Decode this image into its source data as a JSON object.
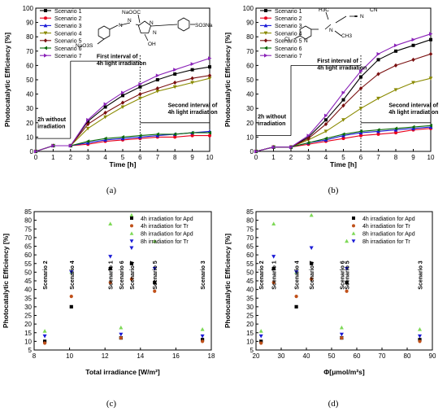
{
  "panel_labels": [
    "(a)",
    "(b)",
    "(c)",
    "(d)"
  ],
  "chart_data": [
    {
      "type": "line",
      "panel": "(a)",
      "xlabel": "Time [h]",
      "ylabel": "Photocatalytic Efficiency [%]",
      "xlim": [
        0,
        10
      ],
      "ylim": [
        0,
        100
      ],
      "xticks": [
        0,
        1,
        2,
        3,
        4,
        5,
        6,
        7,
        8,
        9,
        10
      ],
      "yticks": [
        0,
        10,
        20,
        30,
        40,
        50,
        60,
        70,
        80,
        90,
        100
      ],
      "x": [
        0,
        1,
        2,
        3,
        4,
        5,
        6,
        7,
        8,
        9,
        10
      ],
      "legend_position": "top-left",
      "series": [
        {
          "name": "Scenario 1",
          "color": "#000000",
          "marker": "square",
          "values": [
            0,
            4,
            4,
            21,
            31,
            39,
            45,
            50,
            54,
            57,
            59
          ]
        },
        {
          "name": "Scenario 2",
          "color": "#e8001c",
          "marker": "circle",
          "values": [
            0,
            4,
            4,
            5,
            7,
            8,
            9,
            10,
            10,
            11,
            11
          ]
        },
        {
          "name": "Scenario 3",
          "color": "#1a1ad6",
          "marker": "triangle-up",
          "values": [
            0,
            4,
            4,
            6,
            8,
            9,
            10,
            11,
            12,
            13,
            14
          ]
        },
        {
          "name": "Scenario 4",
          "color": "#8a8a00",
          "marker": "triangle-down",
          "values": [
            0,
            4,
            4,
            16,
            24,
            31,
            37,
            42,
            45,
            48,
            51
          ]
        },
        {
          "name": "Scenario 5",
          "color": "#7a1010",
          "marker": "diamond",
          "values": [
            0,
            4,
            4,
            19,
            27,
            34,
            40,
            44,
            48,
            51,
            53
          ]
        },
        {
          "name": "Scenario 6",
          "color": "#0a6a0a",
          "marker": "triangle-left",
          "values": [
            0,
            4,
            4,
            7,
            9,
            10,
            11,
            12,
            12,
            13,
            13
          ]
        },
        {
          "name": "Scenario 7",
          "color": "#8a22b8",
          "marker": "triangle-right",
          "values": [
            0,
            4,
            4,
            22,
            33,
            41,
            47,
            53,
            57,
            61,
            65
          ]
        }
      ],
      "annotations": [
        {
          "text": [
            "2h without",
            "irradiation"
          ],
          "x": 0.1,
          "y": 21
        },
        {
          "text": [
            "First interval of",
            "4h light irradiation"
          ],
          "x": 3.5,
          "y": 65
        },
        {
          "text": [
            "Second interval of",
            "4h light irradiation"
          ],
          "x": 7.6,
          "y": 31
        }
      ],
      "molecule": "chromophore azo dye with NaOOC, SO3Na and OH groups"
    },
    {
      "type": "line",
      "panel": "(b)",
      "xlabel": "Time [h]",
      "ylabel": "Photocatalytic Efficiency [%]",
      "xlim": [
        0,
        10
      ],
      "ylim": [
        0,
        100
      ],
      "xticks": [
        0,
        1,
        2,
        3,
        4,
        5,
        6,
        7,
        8,
        9,
        10
      ],
      "yticks": [
        0,
        10,
        20,
        30,
        40,
        50,
        60,
        70,
        80,
        90,
        100
      ],
      "x": [
        0,
        1,
        2,
        3,
        4,
        5,
        6,
        7,
        8,
        9,
        10
      ],
      "legend_position": "top-left",
      "series": [
        {
          "name": "Scenario 1",
          "color": "#000000",
          "marker": "square",
          "values": [
            0,
            3,
            3,
            10,
            22,
            36,
            52,
            64,
            70,
            74,
            78
          ]
        },
        {
          "name": "Scenario 2",
          "color": "#e8001c",
          "marker": "circle",
          "values": [
            0,
            3,
            3,
            5,
            7,
            9,
            11,
            12,
            13,
            15,
            16
          ]
        },
        {
          "name": "Scenario 3",
          "color": "#1a1ad6",
          "marker": "triangle-up",
          "values": [
            0,
            3,
            3,
            6,
            8,
            11,
            13,
            14,
            15,
            16,
            17
          ]
        },
        {
          "name": "Scenario 4",
          "color": "#8a8a00",
          "marker": "triangle-down",
          "values": [
            0,
            3,
            3,
            8,
            14,
            22,
            30,
            37,
            43,
            48,
            51
          ]
        },
        {
          "name": "Scenario 5",
          "color": "#7a1010",
          "marker": "diamond",
          "values": [
            0,
            3,
            3,
            9,
            19,
            32,
            44,
            54,
            60,
            64,
            68
          ]
        },
        {
          "name": "Scenario 6",
          "color": "#0a6a0a",
          "marker": "triangle-left",
          "values": [
            0,
            3,
            3,
            6,
            9,
            12,
            14,
            15,
            16,
            17,
            18
          ]
        },
        {
          "name": "Scenario 7",
          "color": "#8a22b8",
          "marker": "triangle-right",
          "values": [
            0,
            3,
            3,
            11,
            25,
            41,
            56,
            68,
            74,
            78,
            82
          ]
        }
      ],
      "annotations": [
        {
          "text": [
            "2h without",
            "irradiation"
          ],
          "x": 0.1,
          "y": 23
        },
        {
          "text": [
            "First interval of",
            "4h light irradiation"
          ],
          "x": 3.5,
          "y": 62
        },
        {
          "text": [
            "Second interval of",
            "4h light irradiation"
          ],
          "x": 7.6,
          "y": 31
        }
      ],
      "molecule": "acetamiprid structure with Cl-pyridine, CH3 and CN groups"
    },
    {
      "type": "scatter",
      "panel": "(c)",
      "xlabel": "Total irradiance [W/m²]",
      "ylabel": "Photocatalytic Efficiency [%]",
      "xlim": [
        8,
        18
      ],
      "ylim": [
        5,
        85
      ],
      "xticks": [
        8,
        10,
        12,
        14,
        16,
        18
      ],
      "yticks": [
        5,
        10,
        15,
        20,
        25,
        30,
        35,
        40,
        45,
        50,
        55,
        60,
        65,
        70,
        75,
        80,
        85
      ],
      "legend_position": "top-right",
      "series": [
        {
          "name": "4h irradiation for Apd",
          "color": "#000000",
          "marker": "square",
          "points": [
            [
              8.6,
              10
            ],
            [
              10.1,
              30
            ],
            [
              12.3,
              52
            ],
            [
              12.9,
              12
            ],
            [
              13.5,
              55
            ],
            [
              14.8,
              44
            ],
            [
              17.5,
              11
            ]
          ]
        },
        {
          "name": "4h irradiation for Tr",
          "color": "#c0501a",
          "marker": "circle",
          "points": [
            [
              8.6,
              9
            ],
            [
              10.1,
              36
            ],
            [
              12.3,
              44
            ],
            [
              12.9,
              12
            ],
            [
              13.5,
              46
            ],
            [
              14.8,
              39
            ],
            [
              17.5,
              10
            ]
          ]
        },
        {
          "name": "8h irradiation for Apd",
          "color": "#7ed957",
          "marker": "triangle-up",
          "points": [
            [
              8.6,
              16
            ],
            [
              10.1,
              50
            ],
            [
              12.3,
              78
            ],
            [
              12.9,
              18
            ],
            [
              13.5,
              83
            ],
            [
              14.8,
              68
            ],
            [
              17.5,
              17
            ]
          ]
        },
        {
          "name": "8h irradiation for Tr",
          "color": "#1a1ad6",
          "marker": "triangle-down",
          "points": [
            [
              8.6,
              13
            ],
            [
              10.1,
              50
            ],
            [
              12.3,
              59
            ],
            [
              12.9,
              14
            ],
            [
              13.5,
              64
            ],
            [
              14.8,
              52
            ],
            [
              17.5,
              13
            ]
          ]
        }
      ],
      "annotations": [
        {
          "text": "Scenario 2",
          "x": 8.6
        },
        {
          "text": "Scenario 4",
          "x": 10.1
        },
        {
          "text": "Scenario 1",
          "x": 12.3
        },
        {
          "text": "Scenario 6",
          "x": 12.9
        },
        {
          "text": "Scenario 7",
          "x": 13.5
        },
        {
          "text": "Scenario 5",
          "x": 14.8
        },
        {
          "text": "Scenario 3",
          "x": 17.5
        }
      ]
    },
    {
      "type": "scatter",
      "panel": "(d)",
      "xlabel": "Φ[μmol/m²s]",
      "ylabel": "Photocatalytic Efficiency [%]",
      "xlim": [
        20,
        90
      ],
      "ylim": [
        5,
        85
      ],
      "xticks": [
        20,
        30,
        40,
        50,
        60,
        70,
        80,
        90
      ],
      "yticks": [
        5,
        10,
        15,
        20,
        25,
        30,
        35,
        40,
        45,
        50,
        55,
        60,
        65,
        70,
        75,
        80,
        85
      ],
      "legend_position": "top-right",
      "series": [
        {
          "name": "4h irradiation for Apd",
          "color": "#000000",
          "marker": "square",
          "points": [
            [
              22,
              10
            ],
            [
              27,
              52
            ],
            [
              36,
              30
            ],
            [
              42,
              55
            ],
            [
              54,
              12
            ],
            [
              56,
              44
            ],
            [
              85,
              11
            ]
          ]
        },
        {
          "name": "4h irradiation for Tr",
          "color": "#c0501a",
          "marker": "circle",
          "points": [
            [
              22,
              9
            ],
            [
              27,
              44
            ],
            [
              36,
              36
            ],
            [
              42,
              46
            ],
            [
              54,
              12
            ],
            [
              56,
              39
            ],
            [
              85,
              10
            ]
          ]
        },
        {
          "name": "8h irradiation for Apd",
          "color": "#7ed957",
          "marker": "triangle-up",
          "points": [
            [
              22,
              16
            ],
            [
              27,
              78
            ],
            [
              36,
              50
            ],
            [
              42,
              83
            ],
            [
              54,
              18
            ],
            [
              56,
              68
            ],
            [
              85,
              17
            ]
          ]
        },
        {
          "name": "8h irradiation for Tr",
          "color": "#1a1ad6",
          "marker": "triangle-down",
          "points": [
            [
              22,
              13
            ],
            [
              27,
              59
            ],
            [
              36,
              50
            ],
            [
              42,
              64
            ],
            [
              54,
              14
            ],
            [
              56,
              52
            ],
            [
              85,
              13
            ]
          ]
        }
      ],
      "annotations": [
        {
          "text": "Scenario 2",
          "x": 22
        },
        {
          "text": "Scenario 1",
          "x": 27
        },
        {
          "text": "Scenario 4",
          "x": 36
        },
        {
          "text": "Scenario 7",
          "x": 42
        },
        {
          "text": "Scenario 6",
          "x": 54
        },
        {
          "text": "Scenario 5",
          "x": 56
        },
        {
          "text": "Scenario 3",
          "x": 85
        }
      ]
    }
  ]
}
